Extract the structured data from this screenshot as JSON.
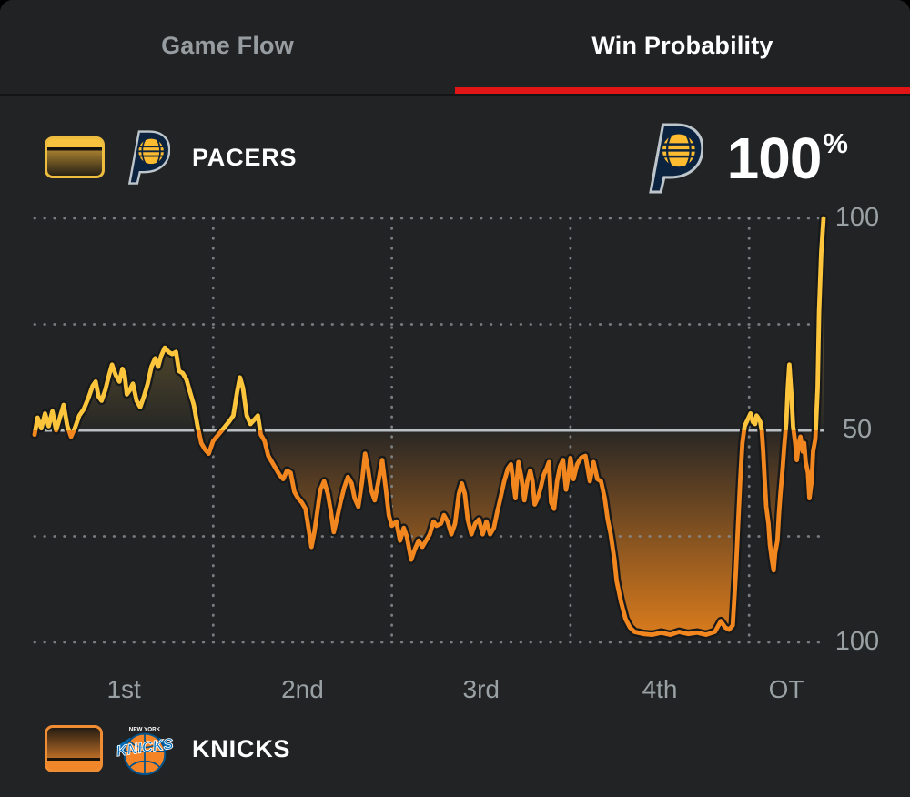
{
  "tabs": {
    "game_flow": "Game Flow",
    "win_probability": "Win Probability"
  },
  "teams": {
    "pacers": {
      "name": "PACERS",
      "win_pct_value": "100",
      "win_pct_unit": "%"
    },
    "knicks": {
      "name": "KNICKS"
    }
  },
  "icons": {
    "pacers_logo": "pacers-p-with-basketball",
    "knicks_logo": "knicks-basketball-wordmark",
    "pacers_swatch": "yellow-fade-gradient-key",
    "knicks_swatch": "orange-fade-gradient-key"
  },
  "colors": {
    "background": "#212325",
    "accent_red": "#e01616",
    "line_yellow": "#fcc53c",
    "line_orange": "#f2861f",
    "line_casing": "#17191b",
    "fill_yellow": "#fcc53c",
    "fill_orange": "#e8821c",
    "midline_gray": "#b9bfc2",
    "grid_dot": "#878d90",
    "axis_text": "#9aa1a5",
    "pacers_navy": "#0c2340",
    "pacers_gold": "#fdbb30",
    "knicks_orange": "#f58426",
    "knicks_blue": "#006bb6"
  },
  "chart_data": {
    "type": "line",
    "title": "Win Probability",
    "x_axis": {
      "labels": [
        "1st",
        "2nd",
        "3rd",
        "4th",
        "OT"
      ],
      "quarter_minutes": 12,
      "ot_minutes": 5,
      "total_minutes": 53
    },
    "y_axis": {
      "tick_labels_top_to_bottom": [
        "100",
        "50",
        "100"
      ],
      "top_is_pacers_pct": 100,
      "middle": 50,
      "bottom_is_knicks_pct": 100
    },
    "legend_position": "top-left and bottom-left team keys",
    "grid": "dotted quarter and 25%-step gridlines, solid 50% midline",
    "final_value_pacers_pct": 100,
    "series": [
      {
        "name": "Pacers win probability (%)",
        "points": [
          [
            0,
            49
          ],
          [
            0.2,
            53
          ],
          [
            0.45,
            50.5
          ],
          [
            0.7,
            54
          ],
          [
            0.95,
            51
          ],
          [
            1.2,
            54.5
          ],
          [
            1.45,
            50
          ],
          [
            1.7,
            53
          ],
          [
            1.95,
            56
          ],
          [
            2.2,
            51
          ],
          [
            2.45,
            48.5
          ],
          [
            2.7,
            50.5
          ],
          [
            3.0,
            53.5
          ],
          [
            3.3,
            55
          ],
          [
            3.6,
            57.5
          ],
          [
            3.9,
            60.5
          ],
          [
            4.1,
            61.5
          ],
          [
            4.3,
            58
          ],
          [
            4.5,
            57
          ],
          [
            4.75,
            59.5
          ],
          [
            5.0,
            63
          ],
          [
            5.2,
            65.5
          ],
          [
            5.45,
            63
          ],
          [
            5.7,
            61.5
          ],
          [
            5.9,
            64.5
          ],
          [
            6.05,
            63
          ],
          [
            6.2,
            58.5
          ],
          [
            6.4,
            59.5
          ],
          [
            6.6,
            61
          ],
          [
            6.85,
            57
          ],
          [
            7.1,
            55.5
          ],
          [
            7.35,
            58
          ],
          [
            7.6,
            61
          ],
          [
            7.85,
            65
          ],
          [
            8.1,
            67
          ],
          [
            8.3,
            65
          ],
          [
            8.5,
            67.5
          ],
          [
            8.75,
            69.5
          ],
          [
            9.0,
            68.5
          ],
          [
            9.25,
            68
          ],
          [
            9.5,
            68.5
          ],
          [
            9.7,
            64
          ],
          [
            9.95,
            63.5
          ],
          [
            10.2,
            62
          ],
          [
            10.45,
            59
          ],
          [
            10.7,
            56
          ],
          [
            10.95,
            51
          ],
          [
            11.2,
            47
          ],
          [
            11.45,
            45.5
          ],
          [
            11.7,
            44.5
          ],
          [
            12.0,
            47.5
          ],
          [
            12.35,
            49
          ],
          [
            12.7,
            50.5
          ],
          [
            13.05,
            52
          ],
          [
            13.35,
            53.5
          ],
          [
            13.6,
            59
          ],
          [
            13.8,
            62.5
          ],
          [
            14.0,
            60
          ],
          [
            14.25,
            53.5
          ],
          [
            14.5,
            51.5
          ],
          [
            14.75,
            52.5
          ],
          [
            15.0,
            53.5
          ],
          [
            15.2,
            49
          ],
          [
            15.45,
            47.5
          ],
          [
            15.7,
            44
          ],
          [
            15.95,
            42.5
          ],
          [
            16.2,
            41
          ],
          [
            16.45,
            39.5
          ],
          [
            16.7,
            38.5
          ],
          [
            16.95,
            40.5
          ],
          [
            17.2,
            40
          ],
          [
            17.45,
            35.5
          ],
          [
            17.7,
            34
          ],
          [
            17.95,
            33
          ],
          [
            18.2,
            31.5
          ],
          [
            18.4,
            27
          ],
          [
            18.6,
            22.5
          ],
          [
            18.8,
            26
          ],
          [
            19.0,
            31
          ],
          [
            19.2,
            36
          ],
          [
            19.45,
            38
          ],
          [
            19.7,
            35
          ],
          [
            19.9,
            31
          ],
          [
            20.1,
            26
          ],
          [
            20.3,
            29
          ],
          [
            20.55,
            33
          ],
          [
            20.8,
            36.5
          ],
          [
            21.05,
            39
          ],
          [
            21.3,
            37.5
          ],
          [
            21.5,
            34
          ],
          [
            21.75,
            32
          ],
          [
            22.0,
            38
          ],
          [
            22.2,
            44.5
          ],
          [
            22.4,
            41
          ],
          [
            22.6,
            36
          ],
          [
            22.85,
            33.5
          ],
          [
            23.1,
            38
          ],
          [
            23.35,
            43
          ],
          [
            23.6,
            36
          ],
          [
            23.8,
            30
          ],
          [
            24.0,
            27.5
          ],
          [
            24.3,
            28.5
          ],
          [
            24.55,
            24
          ],
          [
            24.8,
            27
          ],
          [
            25.0,
            25
          ],
          [
            25.3,
            19.5
          ],
          [
            25.55,
            22
          ],
          [
            25.8,
            24
          ],
          [
            26.05,
            22.5
          ],
          [
            26.3,
            24
          ],
          [
            26.55,
            25.5
          ],
          [
            26.8,
            28.5
          ],
          [
            27.0,
            27.5
          ],
          [
            27.3,
            28
          ],
          [
            27.5,
            30
          ],
          [
            27.75,
            28.5
          ],
          [
            28.0,
            25.5
          ],
          [
            28.25,
            28
          ],
          [
            28.5,
            35
          ],
          [
            28.7,
            37.5
          ],
          [
            28.9,
            35
          ],
          [
            29.1,
            29
          ],
          [
            29.35,
            25.5
          ],
          [
            29.6,
            28
          ],
          [
            29.85,
            29
          ],
          [
            30.1,
            25.5
          ],
          [
            30.35,
            28.5
          ],
          [
            30.6,
            25.5
          ],
          [
            30.85,
            27
          ],
          [
            31.1,
            31
          ],
          [
            31.3,
            34
          ],
          [
            31.55,
            38
          ],
          [
            31.8,
            41
          ],
          [
            32.0,
            42
          ],
          [
            32.15,
            38
          ],
          [
            32.3,
            34
          ],
          [
            32.5,
            42.5
          ],
          [
            32.7,
            39
          ],
          [
            32.9,
            33.5
          ],
          [
            33.1,
            38
          ],
          [
            33.3,
            40.5
          ],
          [
            33.45,
            38
          ],
          [
            33.6,
            32.5
          ],
          [
            33.8,
            34
          ],
          [
            34.0,
            36.5
          ],
          [
            34.2,
            39.5
          ],
          [
            34.4,
            41
          ],
          [
            34.55,
            42.5
          ],
          [
            34.7,
            33
          ],
          [
            34.9,
            31.5
          ],
          [
            35.1,
            38
          ],
          [
            35.3,
            41.5
          ],
          [
            35.5,
            43
          ],
          [
            35.7,
            36
          ],
          [
            35.85,
            39
          ],
          [
            36.0,
            43.5
          ],
          [
            36.2,
            38.5
          ],
          [
            36.45,
            42
          ],
          [
            36.7,
            43.5
          ],
          [
            37.0,
            44
          ],
          [
            37.3,
            38
          ],
          [
            37.55,
            42.5
          ],
          [
            37.8,
            38.5
          ],
          [
            38.05,
            38
          ],
          [
            38.3,
            34
          ],
          [
            38.5,
            29
          ],
          [
            38.7,
            25.5
          ],
          [
            38.95,
            19.5
          ],
          [
            39.1,
            14.5
          ],
          [
            39.4,
            9.5
          ],
          [
            39.7,
            5.5
          ],
          [
            40.0,
            3.5
          ],
          [
            40.3,
            2.5
          ],
          [
            40.9,
            2
          ],
          [
            41.5,
            1.8
          ],
          [
            42.1,
            2.3
          ],
          [
            42.7,
            1.8
          ],
          [
            43.3,
            2.5
          ],
          [
            43.9,
            2
          ],
          [
            44.5,
            2.3
          ],
          [
            45.1,
            1.8
          ],
          [
            45.7,
            2.5
          ],
          [
            46.1,
            5
          ],
          [
            46.4,
            3.5
          ],
          [
            46.65,
            3
          ],
          [
            46.9,
            4
          ],
          [
            47.1,
            16
          ],
          [
            47.25,
            27
          ],
          [
            47.4,
            38
          ],
          [
            47.55,
            47
          ],
          [
            47.7,
            51
          ],
          [
            48.1,
            54
          ],
          [
            48.25,
            52
          ],
          [
            48.4,
            51.5
          ],
          [
            48.5,
            53.5
          ],
          [
            48.6,
            53
          ],
          [
            48.75,
            52
          ],
          [
            48.85,
            50
          ],
          [
            48.95,
            45
          ],
          [
            49.05,
            38
          ],
          [
            49.15,
            32
          ],
          [
            49.3,
            28
          ],
          [
            49.4,
            23
          ],
          [
            49.55,
            19
          ],
          [
            49.65,
            17
          ],
          [
            49.75,
            21
          ],
          [
            49.9,
            24
          ],
          [
            50.0,
            30
          ],
          [
            50.1,
            35
          ],
          [
            50.25,
            41
          ],
          [
            50.35,
            46
          ],
          [
            50.5,
            52
          ],
          [
            50.6,
            60
          ],
          [
            50.7,
            65.5
          ],
          [
            50.85,
            58
          ],
          [
            50.95,
            51
          ],
          [
            51.1,
            47
          ],
          [
            51.2,
            43
          ],
          [
            51.35,
            47
          ],
          [
            51.45,
            48.5
          ],
          [
            51.6,
            45
          ],
          [
            51.7,
            47
          ],
          [
            51.8,
            42.5
          ],
          [
            51.95,
            40
          ],
          [
            52.05,
            34
          ],
          [
            52.2,
            38
          ],
          [
            52.3,
            45
          ],
          [
            52.45,
            48
          ],
          [
            52.6,
            60
          ],
          [
            52.7,
            78
          ],
          [
            52.85,
            92
          ],
          [
            53.0,
            100
          ]
        ]
      }
    ]
  }
}
